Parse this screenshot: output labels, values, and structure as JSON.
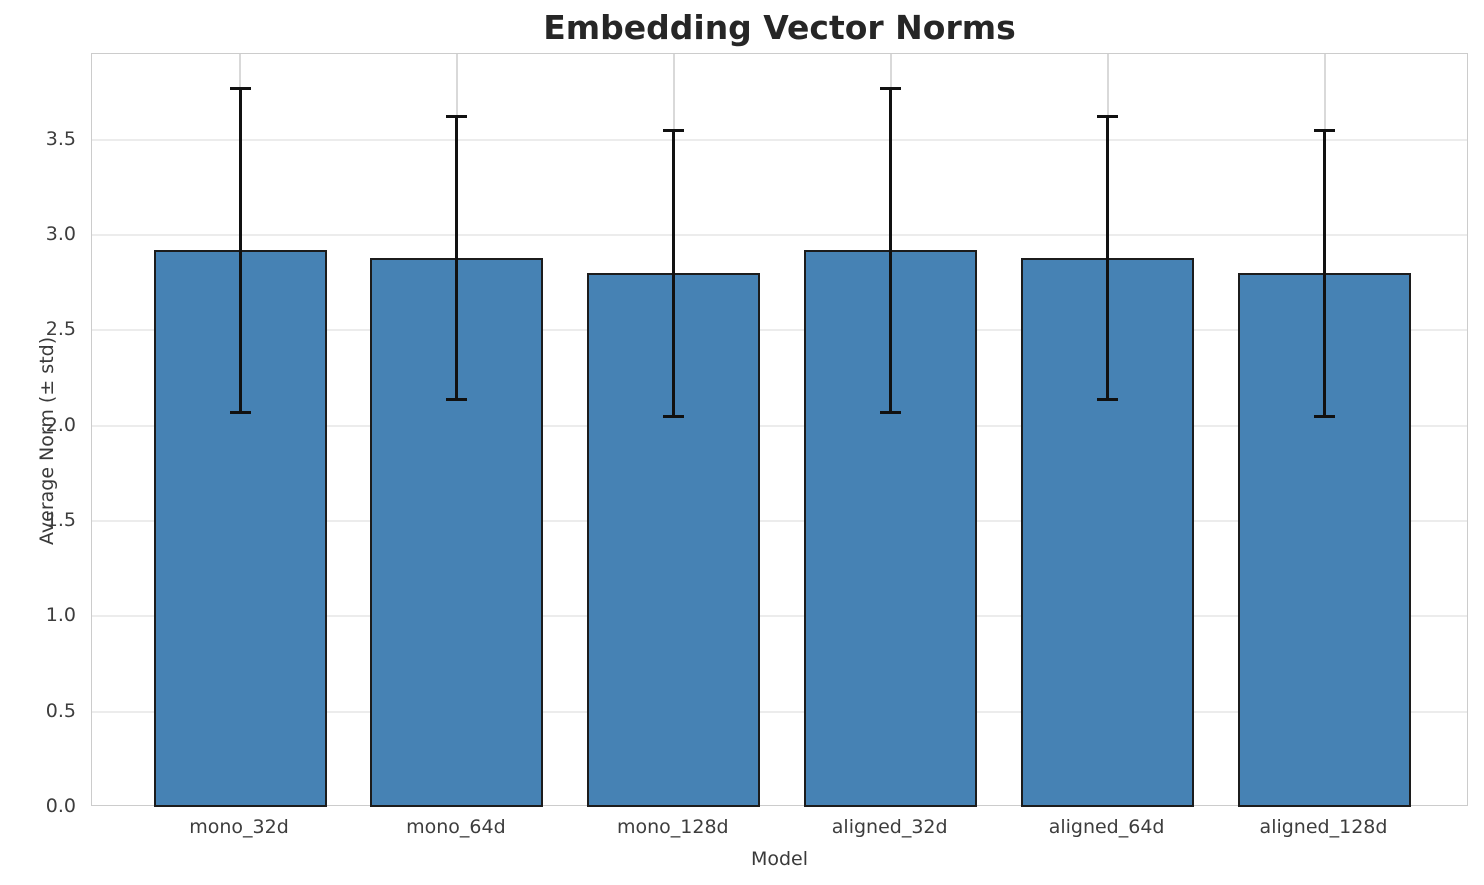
{
  "chart_data": {
    "type": "bar",
    "title": "Embedding Vector Norms",
    "xlabel": "Model",
    "ylabel": "Average Norm (± std)",
    "categories": [
      "mono_32d",
      "mono_64d",
      "mono_128d",
      "aligned_32d",
      "aligned_64d",
      "aligned_128d"
    ],
    "series": [
      {
        "name": "Average Norm",
        "values": [
          2.92,
          2.88,
          2.8,
          2.92,
          2.88,
          2.8
        ],
        "errors": [
          0.85,
          0.74,
          0.75,
          0.85,
          0.74,
          0.75
        ]
      }
    ],
    "y_ticks": [
      0.0,
      0.5,
      1.0,
      1.5,
      2.0,
      2.5,
      3.0,
      3.5
    ],
    "ylim": [
      0,
      3.95
    ],
    "grid": true,
    "legend_position": "none",
    "colors": {
      "bar_fill": "#4682b4",
      "bar_edge": "#1c1c1c",
      "error_bar": "#111111",
      "h_gridline": "#ececec",
      "v_gridline": "#d9d9d9",
      "spine": "#cccccc",
      "title_text": "#262626",
      "tick_text": "#3d3d3d",
      "axis_label_text": "#3a3a3a"
    }
  }
}
